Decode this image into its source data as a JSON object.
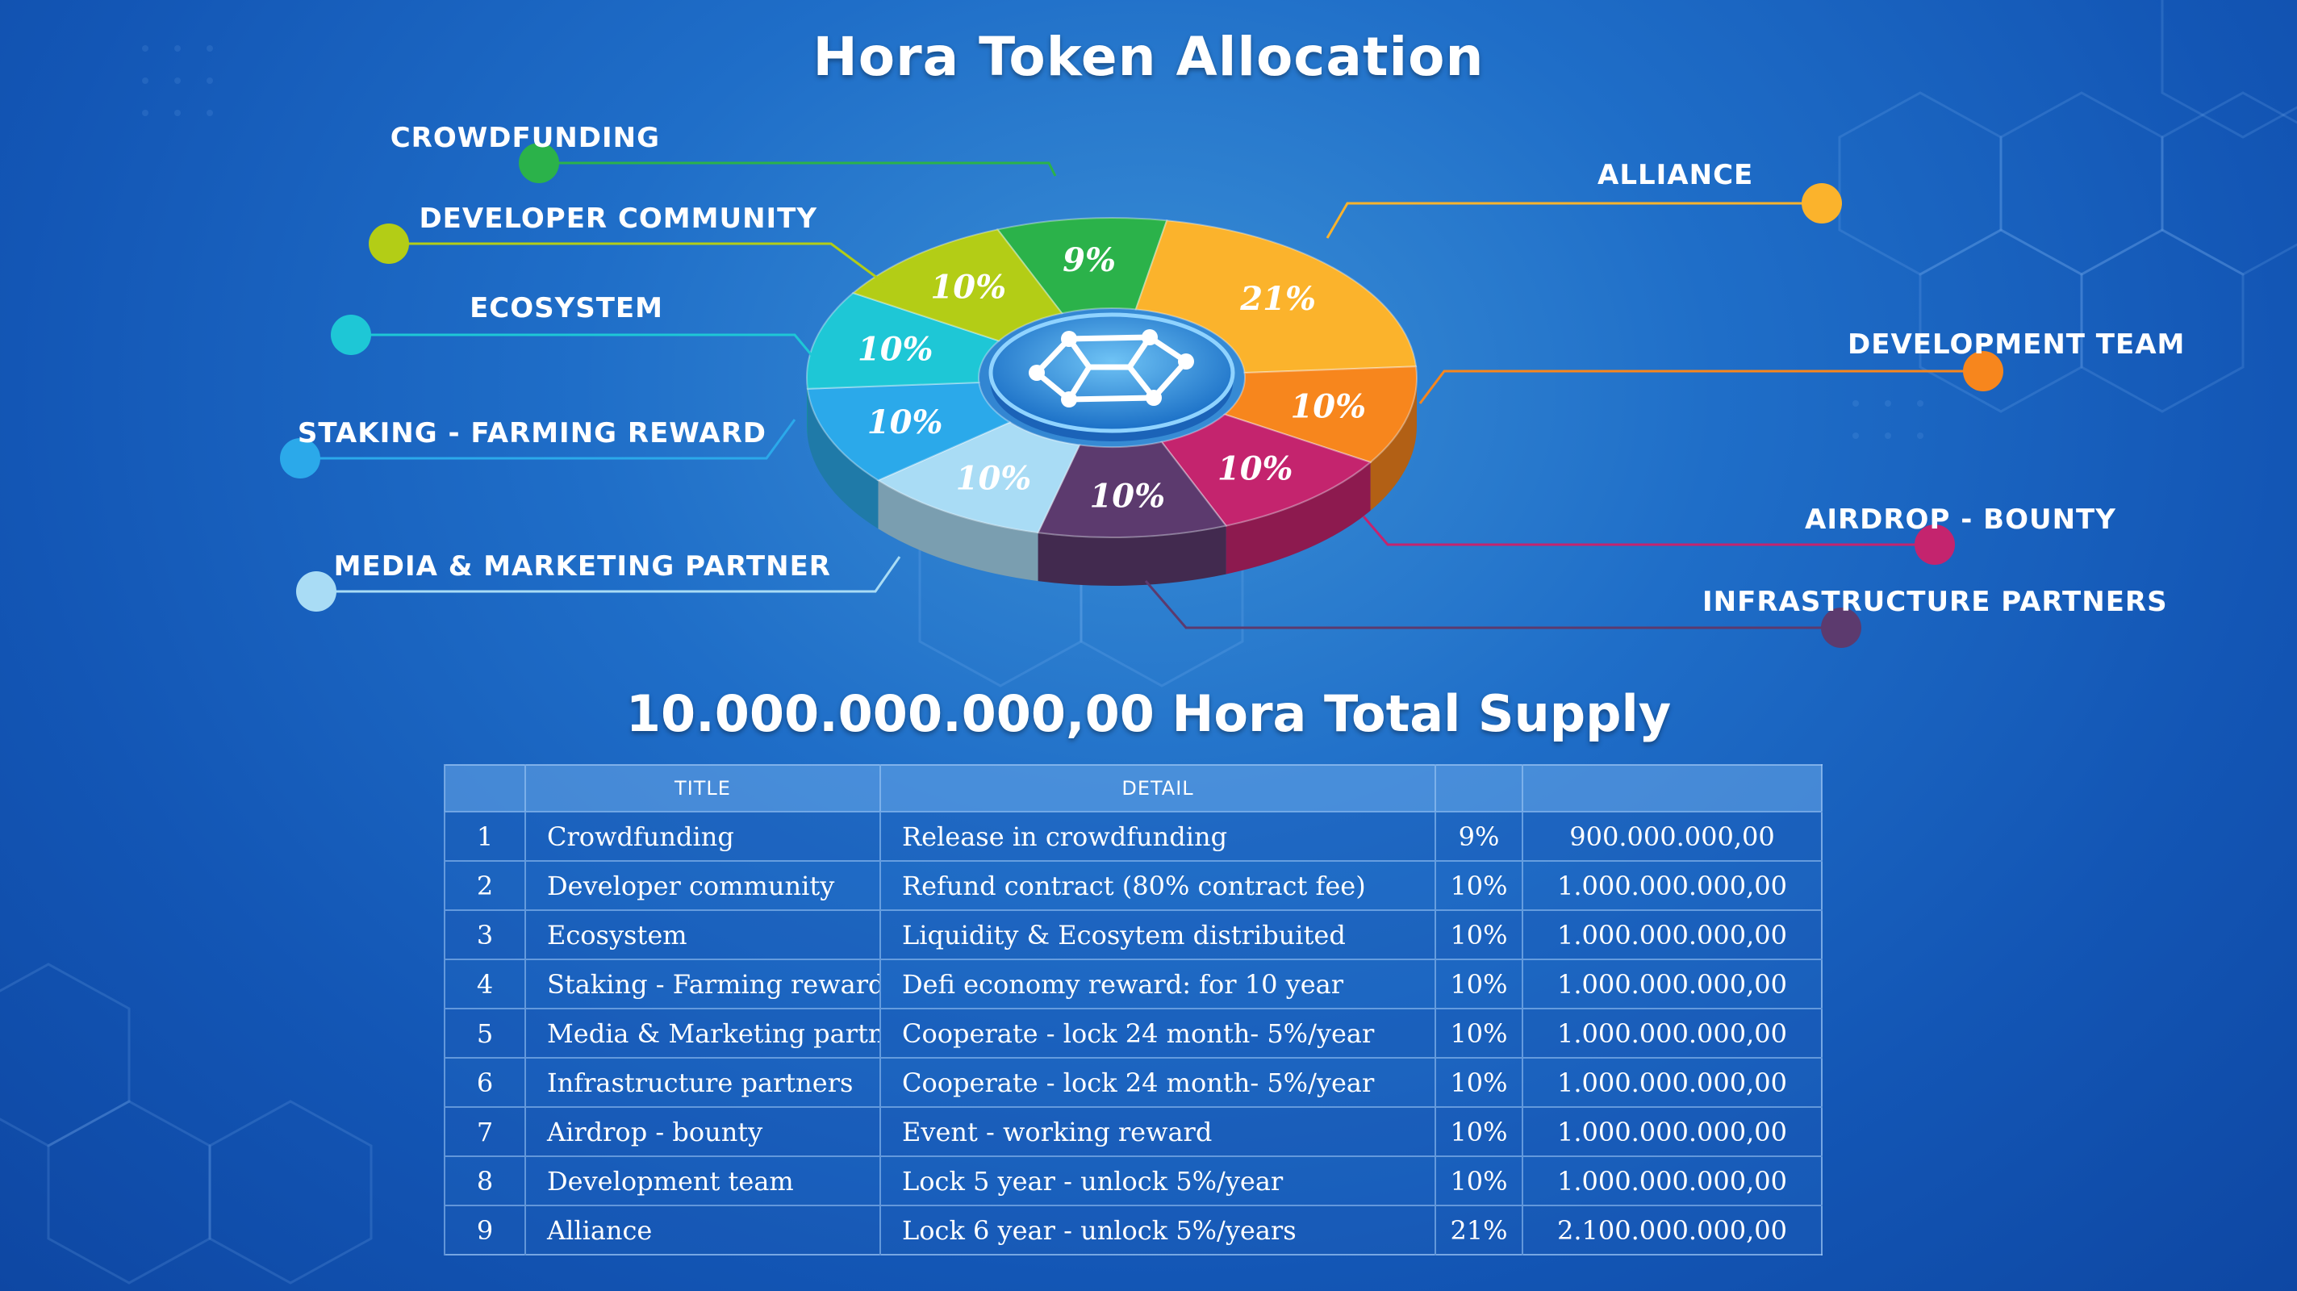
{
  "title": "Hora Token Allocation",
  "supply_text": "10.000.000.000,00 Hora Total Supply",
  "table": {
    "headers": [
      "",
      "TITLE",
      "DETAIL",
      "",
      ""
    ],
    "rows": [
      {
        "no": "1",
        "title": "Crowdfunding",
        "detail": "Release in crowdfunding",
        "pct": "9%",
        "amount": "900.000.000,00"
      },
      {
        "no": "2",
        "title": "Developer community",
        "detail": "Refund contract (80% contract fee)",
        "pct": "10%",
        "amount": "1.000.000.000,00"
      },
      {
        "no": "3",
        "title": "Ecosystem",
        "detail": "Liquidity & Ecosytem distribuited",
        "pct": "10%",
        "amount": "1.000.000.000,00"
      },
      {
        "no": "4",
        "title": "Staking - Farming reward",
        "detail": "Defi economy reward: for 10 year",
        "pct": "10%",
        "amount": "1.000.000.000,00"
      },
      {
        "no": "5",
        "title": "Media & Marketing partner",
        "detail": "Cooperate - lock 24 month- 5%/year",
        "pct": "10%",
        "amount": "1.000.000.000,00"
      },
      {
        "no": "6",
        "title": "Infrastructure partners",
        "detail": "Cooperate - lock 24 month- 5%/year",
        "pct": "10%",
        "amount": "1.000.000.000,00"
      },
      {
        "no": "7",
        "title": "Airdrop - bounty",
        "detail": "Event - working reward",
        "pct": "10%",
        "amount": "1.000.000.000,00"
      },
      {
        "no": "8",
        "title": "Development team",
        "detail": "Lock 5 year - unlock 5%/year",
        "pct": "10%",
        "amount": "1.000.000.000,00"
      },
      {
        "no": "9",
        "title": "Alliance",
        "detail": "Lock 6 year - unlock 5%/years",
        "pct": "21%",
        "amount": "2.100.000.000,00"
      }
    ]
  },
  "chart_data": {
    "type": "pie",
    "title": "Hora Token Allocation",
    "slices": [
      {
        "label": "CROWDFUNDING",
        "value": 9,
        "value_label": "9%",
        "color": "#2bb24a"
      },
      {
        "label": "ALLIANCE",
        "value": 21,
        "value_label": "21%",
        "color": "#fbb32c"
      },
      {
        "label": "DEVELOPMENT TEAM",
        "value": 10,
        "value_label": "10%",
        "color": "#f7861d"
      },
      {
        "label": "AIRDROP - BOUNTY",
        "value": 10,
        "value_label": "10%",
        "color": "#c4246e"
      },
      {
        "label": "INFRASTRUCTURE PARTNERS",
        "value": 10,
        "value_label": "10%",
        "color": "#5c3a6e"
      },
      {
        "label": "MEDIA & MARKETING PARTNER",
        "value": 10,
        "value_label": "10%",
        "color": "#a9dcf5"
      },
      {
        "label": "STAKING - FARMING REWARD",
        "value": 10,
        "value_label": "10%",
        "color": "#2ba9ea"
      },
      {
        "label": "ECOSYSTEM",
        "value": 10,
        "value_label": "10%",
        "color": "#1ec7d6"
      },
      {
        "label": "DEVELOPER COMMUNITY",
        "value": 10,
        "value_label": "10%",
        "color": "#b3cd16"
      }
    ],
    "legend_placement": "around"
  }
}
